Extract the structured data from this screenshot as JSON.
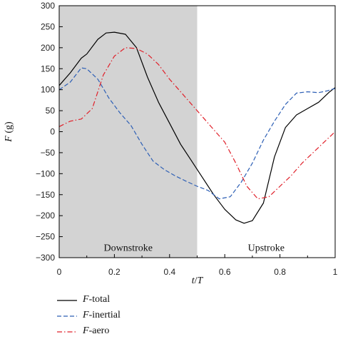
{
  "chart_data": {
    "type": "line",
    "xlabel_italic": "t",
    "xlabel_rest": "/",
    "xlabel_italic2": "T",
    "ylabel_italic": "F",
    "ylabel_rest": " (g)",
    "xlim": [
      0,
      1
    ],
    "ylim": [
      -300,
      300
    ],
    "xticks": [
      "0",
      "0.2",
      "0.4",
      "0.6",
      "0.8",
      "1"
    ],
    "yticks": [
      "300",
      "250",
      "200",
      "150",
      "100",
      "50",
      "0",
      "−50",
      "−100",
      "−150",
      "−200",
      "−250",
      "−300"
    ],
    "shaded_region": {
      "x_start": 0,
      "x_end": 0.5,
      "color": "#d3d3d3"
    },
    "region_labels": {
      "downstroke": "Downstroke",
      "upstroke": "Upstroke"
    },
    "grid": false,
    "legend_placement": "bottom-left, below plot",
    "series": [
      {
        "name_italic": "F",
        "name_rest": "-total",
        "color": "#000000",
        "dash": "solid",
        "points": [
          [
            0,
            110
          ],
          [
            0.04,
            140
          ],
          [
            0.08,
            175
          ],
          [
            0.1,
            185
          ],
          [
            0.14,
            220
          ],
          [
            0.17,
            235
          ],
          [
            0.2,
            237
          ],
          [
            0.24,
            232
          ],
          [
            0.28,
            200
          ],
          [
            0.32,
            130
          ],
          [
            0.36,
            70
          ],
          [
            0.4,
            20
          ],
          [
            0.44,
            -30
          ],
          [
            0.48,
            -70
          ],
          [
            0.52,
            -110
          ],
          [
            0.56,
            -150
          ],
          [
            0.6,
            -185
          ],
          [
            0.64,
            -210
          ],
          [
            0.67,
            -218
          ],
          [
            0.7,
            -212
          ],
          [
            0.74,
            -170
          ],
          [
            0.78,
            -60
          ],
          [
            0.82,
            10
          ],
          [
            0.86,
            40
          ],
          [
            0.9,
            55
          ],
          [
            0.94,
            70
          ],
          [
            0.98,
            95
          ],
          [
            1,
            105
          ]
        ]
      },
      {
        "name_italic": "F",
        "name_rest": "-inertial",
        "color": "#2d5fb5",
        "dash": "dashed",
        "points": [
          [
            0,
            100
          ],
          [
            0.04,
            118
          ],
          [
            0.08,
            152
          ],
          [
            0.1,
            150
          ],
          [
            0.14,
            125
          ],
          [
            0.18,
            80
          ],
          [
            0.22,
            45
          ],
          [
            0.26,
            15
          ],
          [
            0.3,
            -30
          ],
          [
            0.34,
            -70
          ],
          [
            0.38,
            -90
          ],
          [
            0.42,
            -105
          ],
          [
            0.46,
            -118
          ],
          [
            0.5,
            -130
          ],
          [
            0.54,
            -140
          ],
          [
            0.58,
            -160
          ],
          [
            0.62,
            -155
          ],
          [
            0.66,
            -120
          ],
          [
            0.7,
            -75
          ],
          [
            0.74,
            -20
          ],
          [
            0.78,
            25
          ],
          [
            0.82,
            65
          ],
          [
            0.86,
            92
          ],
          [
            0.9,
            95
          ],
          [
            0.94,
            93
          ],
          [
            0.97,
            97
          ],
          [
            1,
            103
          ]
        ]
      },
      {
        "name_italic": "F",
        "name_rest": "-aero",
        "color": "#e0202a",
        "dash": "dashdot",
        "points": [
          [
            0,
            12
          ],
          [
            0.04,
            25
          ],
          [
            0.08,
            30
          ],
          [
            0.12,
            55
          ],
          [
            0.16,
            135
          ],
          [
            0.2,
            180
          ],
          [
            0.24,
            200
          ],
          [
            0.28,
            198
          ],
          [
            0.32,
            185
          ],
          [
            0.36,
            160
          ],
          [
            0.4,
            125
          ],
          [
            0.44,
            95
          ],
          [
            0.48,
            65
          ],
          [
            0.52,
            35
          ],
          [
            0.56,
            5
          ],
          [
            0.6,
            -25
          ],
          [
            0.64,
            -75
          ],
          [
            0.68,
            -130
          ],
          [
            0.72,
            -160
          ],
          [
            0.76,
            -155
          ],
          [
            0.8,
            -130
          ],
          [
            0.84,
            -105
          ],
          [
            0.88,
            -75
          ],
          [
            0.92,
            -50
          ],
          [
            0.96,
            -25
          ],
          [
            1,
            0
          ]
        ]
      }
    ]
  }
}
